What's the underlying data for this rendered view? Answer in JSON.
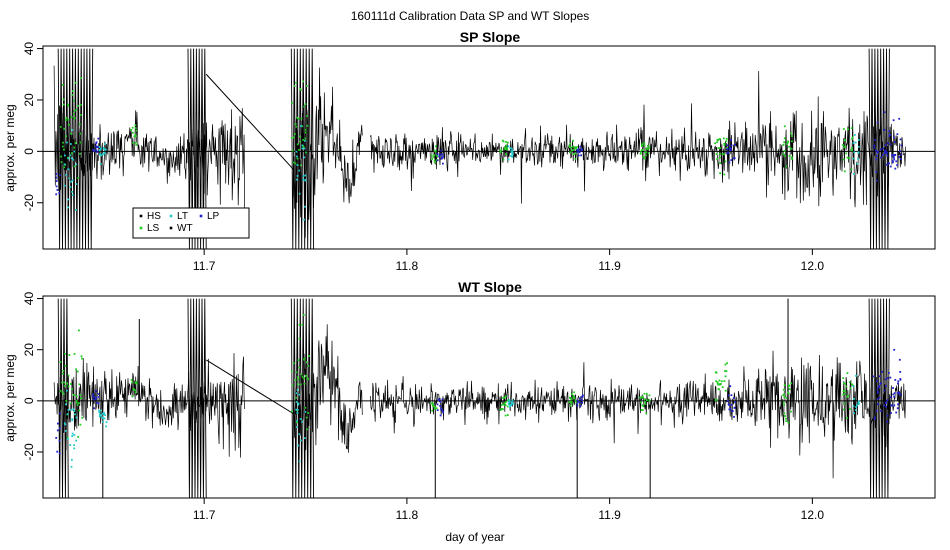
{
  "figure_title": "160111d   Calibration Data SP and WT Slopes",
  "colors": {
    "trace": "#000000",
    "HS": "#000000",
    "LS": "#22cc22",
    "LT": "#22cccc",
    "WT": "#000000",
    "LP": "#2222cc"
  },
  "chart_data": [
    {
      "type": "line",
      "title": "SP Slope",
      "xlabel": "",
      "ylabel": "approx. per meg",
      "xlim": [
        11.6205,
        12.0605
      ],
      "ylim": [
        -38,
        41
      ],
      "xticks": [
        "11.7",
        "11.8",
        "11.9",
        "12.0"
      ],
      "yticks": [
        "-20",
        "0",
        "20",
        "40"
      ],
      "reference_line": 0,
      "legend": {
        "placement": "bottom-left",
        "entries": [
          {
            "label": "HS",
            "color": "#000000"
          },
          {
            "label": "LS",
            "color": "#22cc22"
          },
          {
            "label": "LT",
            "color": "#22cccc"
          },
          {
            "label": "WT",
            "color": "#000000"
          },
          {
            "label": "LP",
            "color": "#2222cc"
          }
        ]
      },
      "noise_profile": [
        [
          11.626,
          12
        ],
        [
          11.64,
          6
        ],
        [
          11.66,
          5
        ],
        [
          11.69,
          5
        ],
        [
          11.743,
          14
        ],
        [
          11.76,
          9
        ],
        [
          11.78,
          4
        ],
        [
          11.84,
          3.2
        ],
        [
          11.9,
          3.5
        ],
        [
          11.95,
          4.5
        ],
        [
          11.975,
          6.5
        ],
        [
          11.99,
          10
        ],
        [
          12.01,
          8
        ],
        [
          12.025,
          12
        ],
        [
          12.045,
          4
        ]
      ],
      "segments": [
        [
          11.626,
          11.72
        ],
        [
          11.744,
          11.778
        ],
        [
          11.782,
          12.046
        ]
      ],
      "gap_line": {
        "x": [
          11.701,
          11.744
        ],
        "y": [
          30,
          -7
        ]
      },
      "oscillation_bands": [
        {
          "x_start": 11.628,
          "x_end": 11.645,
          "amplitude": 40
        },
        {
          "x_start": 11.692,
          "x_end": 11.701,
          "amplitude": 40
        },
        {
          "x_start": 11.743,
          "x_end": 11.754,
          "amplitude": 40
        },
        {
          "x_start": 12.028,
          "x_end": 12.038,
          "amplitude": 40
        }
      ],
      "markers": [
        {
          "series": "LS",
          "x_start": 11.629,
          "x_end": 11.64,
          "y_center": 8,
          "spread": 22
        },
        {
          "series": "LT",
          "x_start": 11.631,
          "x_end": 11.637,
          "y_center": -8,
          "spread": 18
        },
        {
          "series": "LP",
          "x_start": 11.627,
          "x_end": 11.629,
          "y_center": -14,
          "spread": 10
        },
        {
          "series": "LP",
          "x_start": 11.645,
          "x_end": 11.648,
          "y_center": 2,
          "spread": 4
        },
        {
          "series": "LT",
          "x_start": 11.648,
          "x_end": 11.652,
          "y_center": 0,
          "spread": 4
        },
        {
          "series": "LS",
          "x_start": 11.664,
          "x_end": 11.667,
          "y_center": 8,
          "spread": 5
        },
        {
          "series": "LS",
          "x_start": 11.743,
          "x_end": 11.752,
          "y_center": 10,
          "spread": 22
        },
        {
          "series": "LT",
          "x_start": 11.745,
          "x_end": 11.75,
          "y_center": -5,
          "spread": 14
        },
        {
          "series": "LS",
          "x_start": 11.812,
          "x_end": 11.815,
          "y_center": -2,
          "spread": 3
        },
        {
          "series": "LP",
          "x_start": 11.815,
          "x_end": 11.818,
          "y_center": -2,
          "spread": 3
        },
        {
          "series": "LS",
          "x_start": 11.846,
          "x_end": 11.85,
          "y_center": 1,
          "spread": 4
        },
        {
          "series": "LT",
          "x_start": 11.85,
          "x_end": 11.853,
          "y_center": 0,
          "spread": 3
        },
        {
          "series": "LS",
          "x_start": 11.88,
          "x_end": 11.884,
          "y_center": 0,
          "spread": 4
        },
        {
          "series": "LP",
          "x_start": 11.884,
          "x_end": 11.887,
          "y_center": 0,
          "spread": 3
        },
        {
          "series": "LS",
          "x_start": 11.915,
          "x_end": 11.92,
          "y_center": 0,
          "spread": 4
        },
        {
          "series": "LS",
          "x_start": 11.952,
          "x_end": 11.958,
          "y_center": 2,
          "spread": 8
        },
        {
          "series": "LP",
          "x_start": 11.958,
          "x_end": 11.962,
          "y_center": 0,
          "spread": 5
        },
        {
          "series": "LS",
          "x_start": 11.985,
          "x_end": 11.99,
          "y_center": 0,
          "spread": 8
        },
        {
          "series": "LS",
          "x_start": 12.015,
          "x_end": 12.02,
          "y_center": 0,
          "spread": 10
        },
        {
          "series": "LT",
          "x_start": 12.02,
          "x_end": 12.023,
          "y_center": 0,
          "spread": 8
        },
        {
          "series": "LP",
          "x_start": 12.03,
          "x_end": 12.044,
          "y_center": 0,
          "spread": 12
        }
      ]
    },
    {
      "type": "line",
      "title": "WT Slope",
      "xlabel": "day of year",
      "ylabel": "approx. per meg",
      "xlim": [
        11.6205,
        12.0605
      ],
      "ylim": [
        -38,
        41
      ],
      "xticks": [
        "11.7",
        "11.8",
        "11.9",
        "12.0"
      ],
      "yticks": [
        "-20",
        "0",
        "20",
        "40"
      ],
      "reference_line": 0,
      "noise_profile": [
        [
          11.626,
          12
        ],
        [
          11.64,
          6
        ],
        [
          11.66,
          5
        ],
        [
          11.69,
          5
        ],
        [
          11.743,
          14
        ],
        [
          11.76,
          9
        ],
        [
          11.78,
          4
        ],
        [
          11.84,
          3.2
        ],
        [
          11.9,
          3.5
        ],
        [
          11.95,
          4.5
        ],
        [
          11.975,
          6.5
        ],
        [
          11.99,
          9
        ],
        [
          12.01,
          9
        ],
        [
          12.025,
          10
        ],
        [
          12.045,
          4
        ]
      ],
      "segments": [
        [
          11.626,
          11.72
        ],
        [
          11.744,
          11.778
        ],
        [
          11.782,
          12.046
        ]
      ],
      "gap_line": {
        "x": [
          11.701,
          11.744
        ],
        "y": [
          16,
          -5
        ]
      },
      "oscillation_bands": [
        {
          "x_start": 11.628,
          "x_end": 11.633,
          "amplitude": 40
        },
        {
          "x_start": 11.692,
          "x_end": 11.701,
          "amplitude": 40
        },
        {
          "x_start": 11.743,
          "x_end": 11.754,
          "amplitude": 40
        },
        {
          "x_start": 12.028,
          "x_end": 12.038,
          "amplitude": 40
        }
      ],
      "spikes": [
        [
          11.65,
          -38
        ],
        [
          11.668,
          32
        ],
        [
          11.694,
          -38
        ],
        [
          11.814,
          -38
        ],
        [
          11.884,
          -38
        ],
        [
          11.92,
          -38
        ],
        [
          11.988,
          40
        ]
      ],
      "markers": [
        {
          "series": "LS",
          "x_start": 11.629,
          "x_end": 11.64,
          "y_center": 6,
          "spread": 20
        },
        {
          "series": "LT",
          "x_start": 11.631,
          "x_end": 11.637,
          "y_center": -10,
          "spread": 16
        },
        {
          "series": "LP",
          "x_start": 11.627,
          "x_end": 11.629,
          "y_center": -12,
          "spread": 10
        },
        {
          "series": "LP",
          "x_start": 11.645,
          "x_end": 11.648,
          "y_center": 1,
          "spread": 4
        },
        {
          "series": "LT",
          "x_start": 11.648,
          "x_end": 11.652,
          "y_center": -5,
          "spread": 4
        },
        {
          "series": "LS",
          "x_start": 11.664,
          "x_end": 11.667,
          "y_center": 5,
          "spread": 5
        },
        {
          "series": "LS",
          "x_start": 11.743,
          "x_end": 11.752,
          "y_center": 8,
          "spread": 20
        },
        {
          "series": "LT",
          "x_start": 11.745,
          "x_end": 11.75,
          "y_center": -8,
          "spread": 14
        },
        {
          "series": "LS",
          "x_start": 11.812,
          "x_end": 11.815,
          "y_center": -2,
          "spread": 3
        },
        {
          "series": "LP",
          "x_start": 11.815,
          "x_end": 11.818,
          "y_center": -2,
          "spread": 3
        },
        {
          "series": "LS",
          "x_start": 11.846,
          "x_end": 11.85,
          "y_center": -2,
          "spread": 4
        },
        {
          "series": "LT",
          "x_start": 11.85,
          "x_end": 11.853,
          "y_center": -1,
          "spread": 3
        },
        {
          "series": "LS",
          "x_start": 11.88,
          "x_end": 11.884,
          "y_center": 0,
          "spread": 4
        },
        {
          "series": "LP",
          "x_start": 11.884,
          "x_end": 11.887,
          "y_center": 0,
          "spread": 3
        },
        {
          "series": "LS",
          "x_start": 11.915,
          "x_end": 11.92,
          "y_center": 0,
          "spread": 4
        },
        {
          "series": "LS",
          "x_start": 11.952,
          "x_end": 11.958,
          "y_center": 6,
          "spread": 8
        },
        {
          "series": "LP",
          "x_start": 11.958,
          "x_end": 11.962,
          "y_center": 0,
          "spread": 5
        },
        {
          "series": "LS",
          "x_start": 11.985,
          "x_end": 11.99,
          "y_center": 0,
          "spread": 8
        },
        {
          "series": "LS",
          "x_start": 12.015,
          "x_end": 12.02,
          "y_center": 0,
          "spread": 10
        },
        {
          "series": "LT",
          "x_start": 12.02,
          "x_end": 12.023,
          "y_center": 0,
          "spread": 8
        },
        {
          "series": "LP",
          "x_start": 12.03,
          "x_end": 12.044,
          "y_center": 5,
          "spread": 12
        }
      ]
    }
  ]
}
